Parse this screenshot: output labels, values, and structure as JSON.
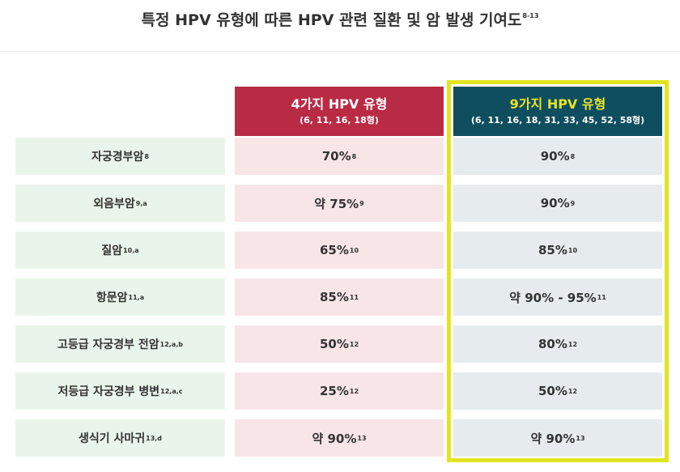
{
  "title": {
    "text": "특정 HPV 유형에 따른 HPV 관련 질환 및 암 발생 기여도",
    "sup": "8-13"
  },
  "headers": {
    "type4": {
      "title": "4가지 HPV 유형",
      "subtitle": "(6, 11, 16, 18형)"
    },
    "type9": {
      "title": "9가지 HPV 유형",
      "subtitle": "(6, 11, 16, 18, 31, 33, 45, 52, 58형)"
    }
  },
  "colors": {
    "header4": "#b92b45",
    "header9": "#0e4e5f",
    "header9_text": "#e8e32a",
    "highlight_border": "#e3e41e",
    "label_bg": "#e9f5ea",
    "col4_bg": "#f8e5e8",
    "col9_bg": "#e6ecee"
  },
  "rows": [
    {
      "label": "자궁경부암",
      "label_sup": "8",
      "v4": "70%",
      "v4_sup": "8",
      "v9": "90%",
      "v9_sup": "8"
    },
    {
      "label": "외음부암",
      "label_sup": "9,a",
      "v4": "약 75%",
      "v4_sup": "9",
      "v9": "90%",
      "v9_sup": "9"
    },
    {
      "label": "질암",
      "label_sup": "10,a",
      "v4": "65%",
      "v4_sup": "10",
      "v9": "85%",
      "v9_sup": "10"
    },
    {
      "label": "항문암",
      "label_sup": "11,a",
      "v4": "85%",
      "v4_sup": "11",
      "v9": "약 90% - 95%",
      "v9_sup": "11"
    },
    {
      "label": "고등급 자궁경부 전암",
      "label_sup": "12,a,b",
      "v4": "50%",
      "v4_sup": "12",
      "v9": "80%",
      "v9_sup": "12"
    },
    {
      "label": "저등급 자궁경부 병변",
      "label_sup": "12,a,c",
      "v4": "25%",
      "v4_sup": "12",
      "v9": "50%",
      "v9_sup": "12"
    },
    {
      "label": "생식기 사마귀",
      "label_sup": "13,d",
      "v4": "약 90%",
      "v4_sup": "13",
      "v9": "약 90%",
      "v9_sup": "13"
    }
  ]
}
